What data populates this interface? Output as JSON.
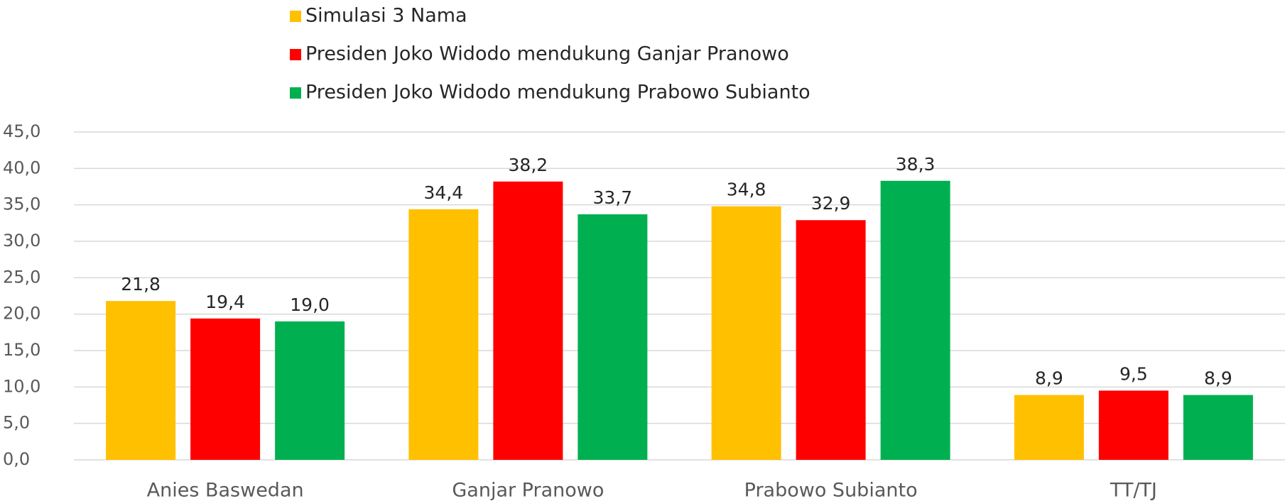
{
  "chart_data": {
    "type": "bar",
    "categories": [
      "Anies Baswedan",
      "Ganjar Pranowo",
      "Prabowo Subianto",
      "TT/TJ"
    ],
    "series": [
      {
        "name": "Simulasi 3 Nama",
        "color": "#FFC000",
        "values": [
          21.8,
          34.4,
          34.8,
          8.9
        ],
        "value_labels": [
          "21,8",
          "34,4",
          "34,8",
          "8,9"
        ]
      },
      {
        "name": "Presiden Joko Widodo mendukung Ganjar Pranowo",
        "color": "#FF0000",
        "values": [
          19.4,
          38.2,
          32.9,
          9.5
        ],
        "value_labels": [
          "19,4",
          "38,2",
          "32,9",
          "9,5"
        ]
      },
      {
        "name": "Presiden Joko Widodo mendukung Prabowo Subianto",
        "color": "#00B050",
        "values": [
          19.0,
          33.7,
          38.3,
          8.9
        ],
        "value_labels": [
          "19,0",
          "33,7",
          "38,3",
          "8,9"
        ]
      }
    ],
    "ylim": [
      0,
      45
    ],
    "yticks": [
      {
        "value": 0,
        "label": "0,0"
      },
      {
        "value": 5,
        "label": "5,0"
      },
      {
        "value": 10,
        "label": "10,0"
      },
      {
        "value": 15,
        "label": "15,0"
      },
      {
        "value": 20,
        "label": "20,0"
      },
      {
        "value": 25,
        "label": "25,0"
      },
      {
        "value": 30,
        "label": "30,0"
      },
      {
        "value": 35,
        "label": "35,0"
      },
      {
        "value": 40,
        "label": "40,0"
      },
      {
        "value": 45,
        "label": "45,0"
      }
    ],
    "grid": true,
    "legend": "top"
  }
}
